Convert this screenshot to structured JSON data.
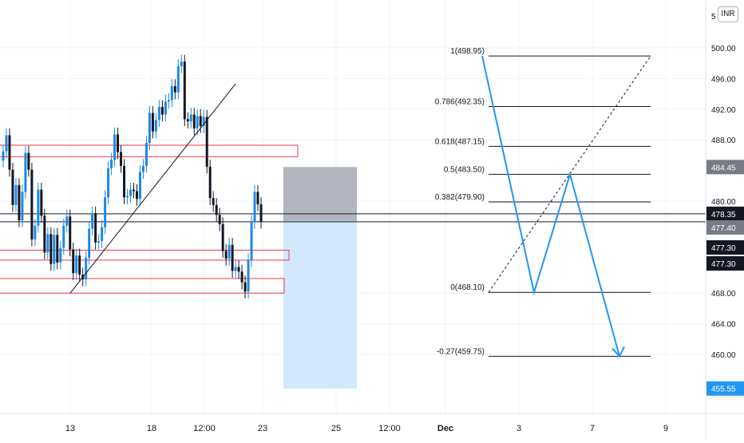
{
  "currency": "INR",
  "colors": {
    "up": "#1e88e5",
    "down": "#131722",
    "zone_stroke": "#f23645",
    "fib_line": "#131722",
    "projection": "#2196f3",
    "target_fill": "#d4e8fb",
    "stop_fill": "#b2b5be",
    "grid": "#f0f3fa",
    "axis_text": "#131722",
    "label_dark": "#131722",
    "label_gray": "#787b86",
    "label_blue": "#2196f3"
  },
  "chart_data": {
    "type": "candlestick",
    "y_range": [
      452.5,
      506.5
    ],
    "y_ticks": [
      {
        "value": 500,
        "label": "500.00"
      },
      {
        "value": 496,
        "label": "496.00"
      },
      {
        "value": 492,
        "label": "492.00"
      },
      {
        "value": 488,
        "label": "488.00"
      },
      {
        "value": 480,
        "label": "480.00"
      },
      {
        "value": 468,
        "label": "468.00"
      },
      {
        "value": 464,
        "label": "464.00"
      },
      {
        "value": 460,
        "label": "460.00"
      }
    ],
    "y_top_label": "5",
    "x_ticks": [
      {
        "label": "13",
        "bold": false
      },
      {
        "label": "18",
        "bold": false
      },
      {
        "label": "12:00",
        "bold": false
      },
      {
        "label": "23",
        "bold": false
      },
      {
        "label": "25",
        "bold": false
      },
      {
        "label": "12:00",
        "bold": false
      },
      {
        "label": "Dec",
        "bold": true
      },
      {
        "label": "3",
        "bold": false
      },
      {
        "label": "7",
        "bold": false
      },
      {
        "label": "9",
        "bold": false
      }
    ],
    "price_labels": [
      {
        "value": 484.45,
        "label": "484.45",
        "style": "gray"
      },
      {
        "value": 478.35,
        "label": "478.35",
        "style": "dark"
      },
      {
        "value": 477.4,
        "label": "477.40",
        "style": "gray"
      },
      {
        "value": 477.3,
        "label": "477.30",
        "style": "dark"
      },
      {
        "value": 477.3,
        "label": "477.30",
        "style": "dark"
      },
      {
        "value": 455.55,
        "label": "455.55",
        "style": "blue"
      }
    ],
    "close_prices": [
      486.5,
      488.6,
      484.1,
      479.5,
      482.1,
      477.5,
      481.2,
      486.3,
      484.1,
      475.0,
      476.8,
      481.5,
      478.1,
      473.3,
      475.7,
      471.8,
      475.6,
      472.0,
      473.9,
      476.8,
      478.0,
      473.7,
      470.6,
      472.9,
      470.4,
      469.8,
      472.6,
      476.4,
      478.4,
      474.6,
      474.8,
      476.6,
      480.5,
      484.3,
      485.4,
      488.7,
      486.4,
      484.6,
      480.5,
      480.7,
      481.5,
      481.3,
      480.3,
      483.8,
      484.6,
      487.6,
      491.5,
      489.1,
      490.6,
      492.3,
      491.3,
      493.0,
      493.2,
      495.0,
      494.2,
      497.6,
      498.2,
      490.7,
      490.4,
      491.3,
      489.5,
      491.1,
      489.8,
      491.0,
      484.5,
      480.4,
      479.5,
      478.2,
      477.0,
      473.5,
      472.5,
      474.3,
      470.9,
      471.4,
      470.8,
      469.4,
      468.2,
      472.3,
      477.3,
      481.2,
      479.6,
      477.3
    ],
    "sr_zones": [
      {
        "low": 485.8,
        "high": 487.3
      },
      {
        "low": 472.3,
        "high": 473.6
      },
      {
        "low": 468.0,
        "high": 469.9
      }
    ],
    "trendline": {
      "from": 468.0,
      "to": 495.3
    },
    "horizontal_lines": [
      478.35,
      477.3
    ],
    "position": {
      "entry": 477.4,
      "stop": 484.45,
      "target": 455.55
    },
    "fibonacci": {
      "levels": [
        {
          "ratio": "1",
          "price": 498.95,
          "label": "1(498.95)"
        },
        {
          "ratio": "0.786",
          "price": 492.35,
          "label": "0.786(492.35)"
        },
        {
          "ratio": "0.618",
          "price": 487.15,
          "label": "0.618(487.15)"
        },
        {
          "ratio": "0.5",
          "price": 483.5,
          "label": "0.5(483.50)"
        },
        {
          "ratio": "0.382",
          "price": 479.9,
          "label": "0.382(479.90)"
        },
        {
          "ratio": "0",
          "price": 468.1,
          "label": "0(468.10)"
        },
        {
          "ratio": "-0.27",
          "price": 459.75,
          "label": "-0.27(459.75)"
        }
      ]
    },
    "projection_path": [
      498.95,
      468.1,
      483.5,
      459.75
    ],
    "grid": true
  }
}
